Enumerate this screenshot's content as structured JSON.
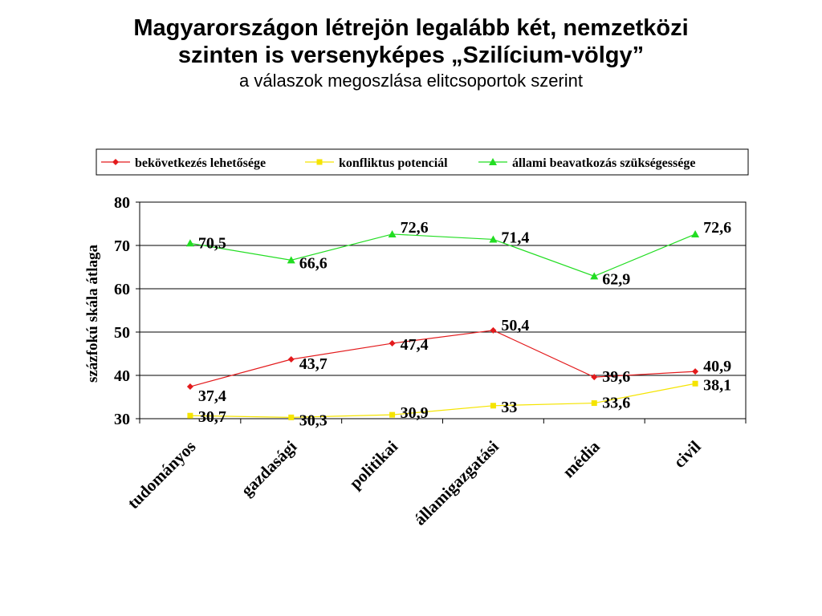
{
  "title_line1": "Magyarországon létrejön legalább két, nemzetközi",
  "title_line2": "szinten is versenyképes „Szilícium-völgy”",
  "subtitle": "a válaszok megoszlása elitcsoportok szerint",
  "chart_data": {
    "type": "line",
    "categories": [
      "tudományos",
      "gazdasági",
      "politikai",
      "államigazgatási",
      "média",
      "civil"
    ],
    "ylabel": "százfokú skála átlaga",
    "ylim": [
      30,
      80
    ],
    "yticks": [
      30,
      40,
      50,
      60,
      70,
      80
    ],
    "grid": true,
    "legend_position": "top",
    "series": [
      {
        "name": "bekövetkezés lehetősége",
        "color": "#e31a1c",
        "marker": "diamond",
        "values": [
          37.4,
          43.7,
          47.4,
          50.4,
          39.6,
          40.9
        ],
        "labels": [
          "37,4",
          "43,7",
          "47,4",
          "50,4",
          "39,6",
          "40,9"
        ]
      },
      {
        "name": "konfliktus potenciál",
        "color": "#f5e400",
        "marker": "square",
        "values": [
          30.7,
          30.3,
          30.9,
          33,
          33.6,
          38.1
        ],
        "labels": [
          "30,7",
          "30,3",
          "30,9",
          "33",
          "33,6",
          "38,1"
        ]
      },
      {
        "name": "állami beavatkozás szükségessége",
        "color": "#22dd22",
        "marker": "triangle",
        "values": [
          70.5,
          66.6,
          72.6,
          71.4,
          62.9,
          72.6
        ],
        "labels": [
          "70,5",
          "66,6",
          "72,6",
          "71,4",
          "62,9",
          "72,6"
        ]
      }
    ]
  }
}
